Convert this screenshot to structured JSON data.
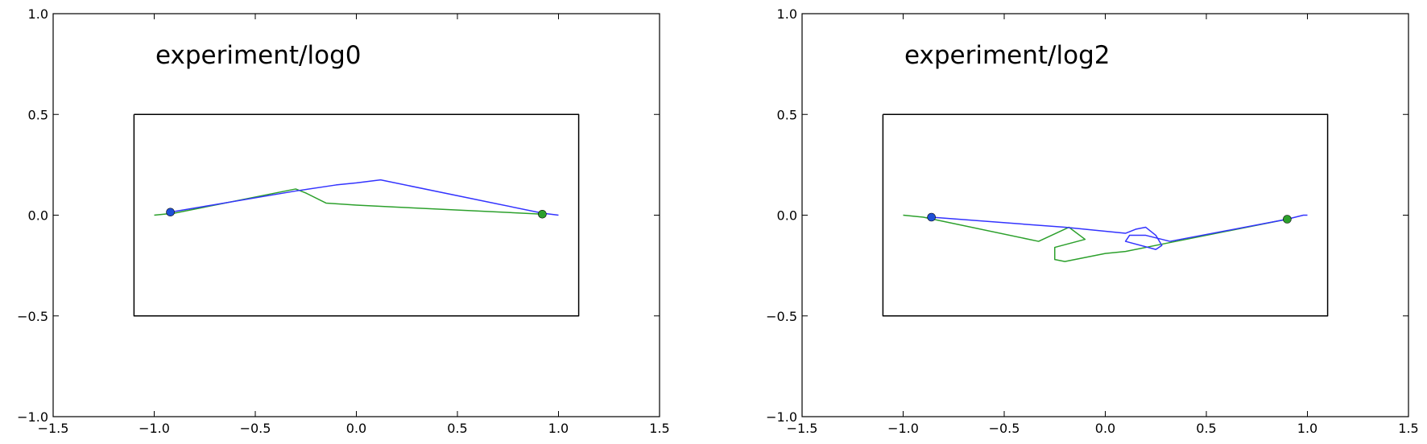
{
  "chart_data": [
    {
      "type": "line",
      "title": "experiment/log0",
      "xlim": [
        -1.5,
        1.5
      ],
      "ylim": [
        -1.0,
        1.0
      ],
      "xticks": [
        {
          "value": -1.5,
          "label": "−1.5"
        },
        {
          "value": -1.0,
          "label": "−1.0"
        },
        {
          "value": -0.5,
          "label": "−0.5"
        },
        {
          "value": 0.0,
          "label": "0.0"
        },
        {
          "value": 0.5,
          "label": "0.5"
        },
        {
          "value": 1.0,
          "label": "1.0"
        },
        {
          "value": 1.5,
          "label": "1.5"
        }
      ],
      "yticks": [
        {
          "value": -1.0,
          "label": "−1.0"
        },
        {
          "value": -0.5,
          "label": "−0.5"
        },
        {
          "value": 0.0,
          "label": "0.0"
        },
        {
          "value": 0.5,
          "label": "0.5"
        },
        {
          "value": 1.0,
          "label": "1.0"
        }
      ],
      "series": [
        {
          "color": "#000000",
          "x": [
            -1.1,
            1.1,
            1.1,
            -1.1,
            -1.1
          ],
          "values": [
            0.5,
            0.5,
            -0.5,
            -0.5,
            0.5
          ]
        },
        {
          "color": "#2ca02c",
          "x": [
            -1.0,
            -0.9,
            -0.3,
            -0.25,
            -0.15,
            0.0,
            0.2,
            0.92
          ],
          "values": [
            0.0,
            0.01,
            0.13,
            0.11,
            0.06,
            0.05,
            0.04,
            0.005
          ]
        },
        {
          "color": "#3333ff",
          "x": [
            -0.92,
            -0.3,
            -0.1,
            0.0,
            0.12,
            0.92,
            1.0
          ],
          "values": [
            0.015,
            0.12,
            0.15,
            0.16,
            0.175,
            0.01,
            0.0
          ]
        }
      ],
      "markers": [
        {
          "color": "#2ca02c",
          "x": 0.92,
          "y": 0.005
        },
        {
          "color": "#1f4fd6",
          "x": -0.92,
          "y": 0.015
        }
      ]
    },
    {
      "type": "line",
      "title": "experiment/log2",
      "xlim": [
        -1.5,
        1.5
      ],
      "ylim": [
        -1.0,
        1.0
      ],
      "xticks": [
        {
          "value": -1.5,
          "label": "−1.5"
        },
        {
          "value": -1.0,
          "label": "−1.0"
        },
        {
          "value": -0.5,
          "label": "−0.5"
        },
        {
          "value": 0.0,
          "label": "0.0"
        },
        {
          "value": 0.5,
          "label": "0.5"
        },
        {
          "value": 1.0,
          "label": "1.0"
        },
        {
          "value": 1.5,
          "label": "1.5"
        }
      ],
      "yticks": [
        {
          "value": -1.0,
          "label": "−1.0"
        },
        {
          "value": -0.5,
          "label": "−0.5"
        },
        {
          "value": 0.0,
          "label": "0.0"
        },
        {
          "value": 0.5,
          "label": "0.5"
        },
        {
          "value": 1.0,
          "label": "1.0"
        }
      ],
      "series": [
        {
          "color": "#000000",
          "x": [
            -1.1,
            1.1,
            1.1,
            -1.1,
            -1.1
          ],
          "values": [
            0.5,
            0.5,
            -0.5,
            -0.5,
            0.5
          ]
        },
        {
          "color": "#2ca02c",
          "x": [
            -1.0,
            -0.9,
            -0.33,
            -0.18,
            -0.1,
            -0.25,
            -0.25,
            -0.2,
            0.0,
            0.1,
            0.3,
            0.9
          ],
          "values": [
            0.0,
            -0.01,
            -0.13,
            -0.06,
            -0.12,
            -0.16,
            -0.22,
            -0.23,
            -0.19,
            -0.18,
            -0.14,
            -0.02
          ]
        },
        {
          "color": "#3333ff",
          "x": [
            -0.86,
            -0.2,
            0.1,
            0.15,
            0.2,
            0.25,
            0.28,
            0.25,
            0.1,
            0.12,
            0.2,
            0.32,
            0.9,
            0.98,
            1.0
          ],
          "values": [
            -0.01,
            -0.06,
            -0.09,
            -0.07,
            -0.06,
            -0.1,
            -0.15,
            -0.17,
            -0.13,
            -0.1,
            -0.1,
            -0.13,
            -0.02,
            0.0,
            0.0
          ]
        }
      ],
      "markers": [
        {
          "color": "#2ca02c",
          "x": 0.9,
          "y": -0.02
        },
        {
          "color": "#1f4fd6",
          "x": -0.86,
          "y": -0.01
        }
      ]
    }
  ]
}
